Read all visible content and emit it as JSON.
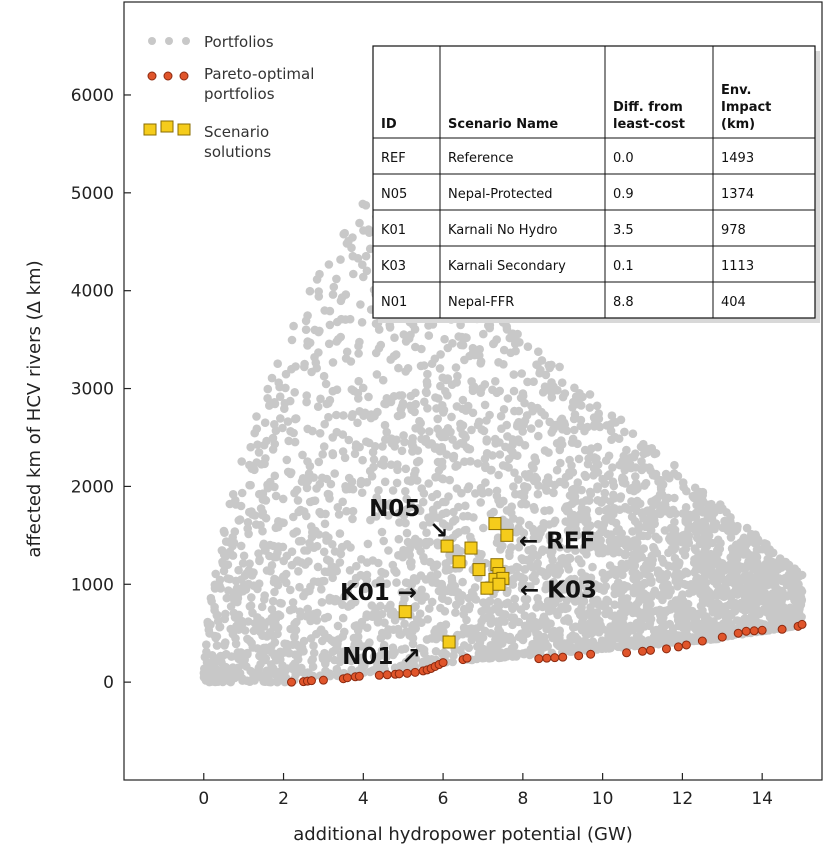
{
  "chart_data": {
    "type": "scatter",
    "title": "",
    "xlabel": "additional hydropower potential (GW)",
    "ylabel": "affected km of HCV rivers (Δ km)",
    "xlim": [
      -2,
      15.5
    ],
    "ylim": [
      -1000,
      6950
    ],
    "x_ticks": [
      "0",
      "2",
      "4",
      "6",
      "8",
      "10",
      "12",
      "14"
    ],
    "y_ticks": [
      "0",
      "1000",
      "2000",
      "3000",
      "4000",
      "5000",
      "6000"
    ],
    "grid": false,
    "legend_position": "top-left",
    "legend": [
      "Portfolios",
      "Pareto-optimal portfolios",
      "Scenario solutions"
    ],
    "colors": {
      "portfolios": "#c8c8c8",
      "pareto_fill": "#e0552b",
      "pareto_stroke": "#8c2a10",
      "scenario_fill": "#f5cc1b",
      "scenario_stroke": "#8a6d00"
    },
    "series": [
      {
        "name": "Portfolios",
        "marker": "circle",
        "description_region": "dense cloud from x=0 to 15; lower bound follows the pareto front, upper envelope rises to ~4900 near x=4 and declines to ~1000 at x=15"
      },
      {
        "name": "Pareto-optimal portfolios",
        "marker": "circle",
        "points": [
          [
            2.2,
            0
          ],
          [
            2.5,
            5
          ],
          [
            2.6,
            10
          ],
          [
            2.7,
            15
          ],
          [
            3.0,
            20
          ],
          [
            3.5,
            35
          ],
          [
            3.6,
            45
          ],
          [
            3.8,
            55
          ],
          [
            3.9,
            60
          ],
          [
            4.4,
            70
          ],
          [
            4.6,
            75
          ],
          [
            4.8,
            80
          ],
          [
            4.9,
            85
          ],
          [
            5.1,
            90
          ],
          [
            5.3,
            100
          ],
          [
            5.5,
            115
          ],
          [
            5.6,
            125
          ],
          [
            5.7,
            140
          ],
          [
            5.8,
            160
          ],
          [
            5.9,
            180
          ],
          [
            6.0,
            200
          ],
          [
            6.5,
            230
          ],
          [
            6.6,
            245
          ],
          [
            8.4,
            240
          ],
          [
            8.6,
            245
          ],
          [
            8.8,
            250
          ],
          [
            9.0,
            255
          ],
          [
            9.4,
            270
          ],
          [
            9.7,
            285
          ],
          [
            10.6,
            300
          ],
          [
            11.0,
            315
          ],
          [
            11.2,
            325
          ],
          [
            11.6,
            340
          ],
          [
            11.9,
            360
          ],
          [
            12.1,
            380
          ],
          [
            12.5,
            420
          ],
          [
            13.0,
            460
          ],
          [
            13.4,
            500
          ],
          [
            13.6,
            520
          ],
          [
            13.8,
            525
          ],
          [
            14.0,
            530
          ],
          [
            14.5,
            540
          ],
          [
            14.9,
            570
          ],
          [
            15.0,
            590
          ]
        ]
      },
      {
        "name": "Scenario solutions",
        "marker": "square",
        "points": [
          [
            7.3,
            1620
          ],
          [
            7.6,
            1500
          ],
          [
            6.1,
            1390
          ],
          [
            6.7,
            1370
          ],
          [
            6.4,
            1230
          ],
          [
            7.35,
            1200
          ],
          [
            6.9,
            1150
          ],
          [
            7.4,
            1110
          ],
          [
            7.3,
            1050
          ],
          [
            7.5,
            1060
          ],
          [
            7.4,
            1000
          ],
          [
            7.1,
            960
          ],
          [
            5.05,
            720
          ],
          [
            6.15,
            410
          ]
        ]
      }
    ],
    "annotations": [
      {
        "label": "N05",
        "arrow": "↘",
        "x": 6.1,
        "y": 1390
      },
      {
        "label": "REF",
        "arrow": "←",
        "x": 7.5,
        "y": 1500
      },
      {
        "label": "K01",
        "arrow": "→",
        "x": 7.1,
        "y": 960
      },
      {
        "label": "K03",
        "arrow": "←",
        "x": 7.5,
        "y": 1000
      },
      {
        "label": "N01",
        "arrow": "↗",
        "x": 6.15,
        "y": 410
      }
    ],
    "table": {
      "columns": [
        "ID",
        "Scenario Name",
        "Diff. from least-cost",
        "Env. Impact (km)"
      ],
      "rows": [
        [
          "REF",
          "Reference",
          "0.0",
          "1493"
        ],
        [
          "N05",
          "Nepal-Protected",
          "0.9",
          "1374"
        ],
        [
          "K01",
          "Karnali No Hydro",
          "3.5",
          "978"
        ],
        [
          "K03",
          "Karnali Secondary",
          "0.1",
          "1113"
        ],
        [
          "N01",
          "Nepal-FFR",
          "8.8",
          "404"
        ]
      ]
    }
  }
}
